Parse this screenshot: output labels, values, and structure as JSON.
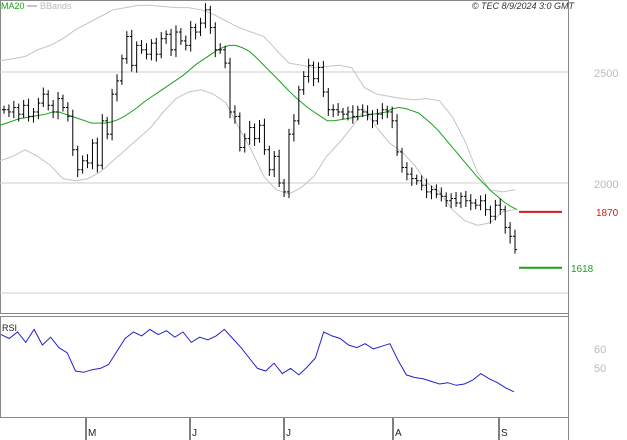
{
  "legend": {
    "ma_label": "MA20",
    "bb_label": "BBands"
  },
  "copyright": "© TEC 8/9/2024 3:0 GMT",
  "indicator_label": "RSI",
  "colors": {
    "price": "#000000",
    "ma": "#1aa01a",
    "bands": "#c4c4c4",
    "rsi": "#2222cc",
    "resistance": "#d41a1a",
    "support": "#1aa01a",
    "grid": "#cccccc",
    "axis": "#888888"
  },
  "chart_data": {
    "type": "ohlc",
    "x_ticks": [
      "M",
      "J",
      "J",
      "A",
      "S"
    ],
    "y_ticks": [
      "2500",
      "2000"
    ],
    "y_range": [
      1250,
      2800
    ],
    "levels": [
      {
        "label": "1870",
        "value": 1870,
        "color": "#d41a1a"
      },
      {
        "label": "1618",
        "value": 1618,
        "color": "#1aa01a"
      }
    ],
    "price": [
      2330,
      2320,
      2340,
      2310,
      2350,
      2300,
      2320,
      2360,
      2400,
      2350,
      2320,
      2380,
      2340,
      2300,
      2150,
      2060,
      2100,
      2090,
      2180,
      2080,
      2280,
      2220,
      2400,
      2460,
      2560,
      2660,
      2530,
      2620,
      2600,
      2580,
      2630,
      2580,
      2650,
      2670,
      2600,
      2680,
      2640,
      2620,
      2700,
      2680,
      2720,
      2780,
      2700,
      2600,
      2600,
      2540,
      2320,
      2300,
      2160,
      2200,
      2250,
      2200,
      2260,
      2150,
      2060,
      2120,
      2000,
      1960,
      2220,
      2280,
      2420,
      2480,
      2530,
      2470,
      2520,
      2410,
      2330,
      2330,
      2320,
      2310,
      2320,
      2300,
      2330,
      2320,
      2310,
      2280,
      2310,
      2330,
      2320,
      2280,
      2140,
      2070,
      2040,
      2020,
      2010,
      1990,
      1960,
      1970,
      1950,
      1940,
      1920,
      1930,
      1910,
      1940,
      1920,
      1910,
      1900,
      1920,
      1880,
      1850,
      1900,
      1880,
      1800,
      1760,
      1700
    ],
    "ma20": [
      2260,
      2270,
      2280,
      2290,
      2295,
      2300,
      2305,
      2310,
      2320,
      2320,
      2310,
      2300,
      2290,
      2280,
      2270,
      2270,
      2270,
      2275,
      2285,
      2300,
      2320,
      2340,
      2365,
      2385,
      2405,
      2425,
      2445,
      2465,
      2485,
      2510,
      2535,
      2555,
      2575,
      2595,
      2610,
      2620,
      2620,
      2610,
      2595,
      2570,
      2540,
      2510,
      2480,
      2450,
      2420,
      2390,
      2365,
      2340,
      2320,
      2300,
      2280,
      2280,
      2285,
      2290,
      2295,
      2300,
      2305,
      2310,
      2315,
      2320,
      2335,
      2340,
      2335,
      2325,
      2315,
      2290,
      2265,
      2235,
      2200,
      2165,
      2130,
      2095,
      2060,
      2025,
      1995,
      1965,
      1940,
      1915,
      1895,
      1880
    ],
    "bb_upper": [
      2550,
      2560,
      2570,
      2600,
      2620,
      2650,
      2690,
      2720,
      2750,
      2780,
      2790,
      2800,
      2800,
      2795,
      2790,
      2790,
      2780,
      2760,
      2730,
      2700,
      2680,
      2660,
      2600,
      2540,
      2530,
      2520,
      2525,
      2530,
      2520,
      2430,
      2400,
      2390,
      2380,
      2375,
      2380,
      2370,
      2300,
      2190,
      2050,
      1970,
      1960,
      1970
    ],
    "bb_lower": [
      2100,
      2120,
      2150,
      2120,
      2080,
      2020,
      2010,
      2020,
      2050,
      2100,
      2150,
      2200,
      2250,
      2320,
      2380,
      2410,
      2420,
      2400,
      2360,
      2250,
      2150,
      2030,
      1970,
      1950,
      1980,
      2030,
      2120,
      2180,
      2250,
      2330,
      2250,
      2180,
      2140,
      2080,
      2000,
      1960,
      1880,
      1830,
      1810,
      1820,
      1870,
      1880
    ],
    "rsi": [
      58,
      55,
      60,
      52,
      62,
      50,
      56,
      48,
      44,
      30,
      29,
      31,
      32,
      35,
      45,
      55,
      60,
      57,
      62,
      58,
      61,
      56,
      60,
      52,
      56,
      54,
      57,
      62,
      55,
      48,
      40,
      32,
      30,
      36,
      28,
      32,
      27,
      33,
      40,
      60,
      57,
      55,
      50,
      48,
      51,
      47,
      49,
      51,
      38,
      27,
      25,
      24,
      22,
      20,
      21,
      19,
      20,
      23,
      28,
      24,
      21,
      17,
      14
    ]
  }
}
